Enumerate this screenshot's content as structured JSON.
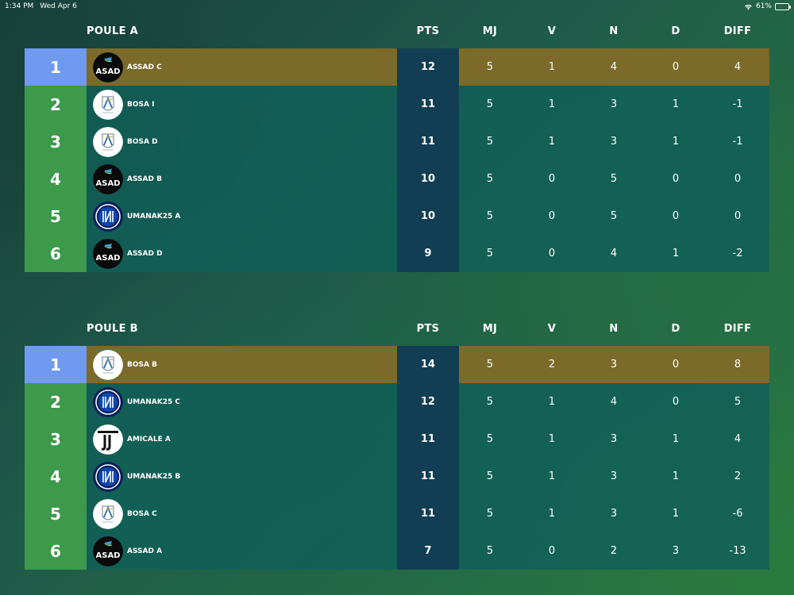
{
  "status_bar": {
    "time": "1:34 PM",
    "date": "Wed Apr 6",
    "battery": "61%",
    "battery_level": 0.61
  },
  "columns": [
    "PTS",
    "MJ",
    "V",
    "N",
    "D",
    "DIFF"
  ],
  "colors": {
    "rank_first": "#6f9af0",
    "rank": "#3d9a4a",
    "highlight": "#7b6a2a",
    "pts_column": "#123e54"
  },
  "groups": [
    {
      "title": "POULE A",
      "rows": [
        {
          "rank": "1",
          "team": "ASSAD C",
          "logo": "assad-logo",
          "pts": "12",
          "mj": "5",
          "v": "1",
          "n": "4",
          "d": "0",
          "diff": "4"
        },
        {
          "rank": "2",
          "team": "BOSA I",
          "logo": "bosa-logo",
          "pts": "11",
          "mj": "5",
          "v": "1",
          "n": "3",
          "d": "1",
          "diff": "-1"
        },
        {
          "rank": "3",
          "team": "BOSA D",
          "logo": "bosa-logo",
          "pts": "11",
          "mj": "5",
          "v": "1",
          "n": "3",
          "d": "1",
          "diff": "-1"
        },
        {
          "rank": "4",
          "team": "ASSAD B",
          "logo": "assad-logo",
          "pts": "10",
          "mj": "5",
          "v": "0",
          "n": "5",
          "d": "0",
          "diff": "0"
        },
        {
          "rank": "5",
          "team": "UMANAK25 A",
          "logo": "umanak-logo",
          "pts": "10",
          "mj": "5",
          "v": "0",
          "n": "5",
          "d": "0",
          "diff": "0"
        },
        {
          "rank": "6",
          "team": "ASSAD D",
          "logo": "assad-logo",
          "pts": "9",
          "mj": "5",
          "v": "0",
          "n": "4",
          "d": "1",
          "diff": "-2"
        }
      ]
    },
    {
      "title": "POULE B",
      "rows": [
        {
          "rank": "1",
          "team": "BOSA B",
          "logo": "bosa-logo",
          "pts": "14",
          "mj": "5",
          "v": "2",
          "n": "3",
          "d": "0",
          "diff": "8"
        },
        {
          "rank": "2",
          "team": "UMANAK25 C",
          "logo": "umanak-logo",
          "pts": "12",
          "mj": "5",
          "v": "1",
          "n": "4",
          "d": "0",
          "diff": "5"
        },
        {
          "rank": "3",
          "team": "AMICALE A",
          "logo": "juventus-logo",
          "pts": "11",
          "mj": "5",
          "v": "1",
          "n": "3",
          "d": "1",
          "diff": "4"
        },
        {
          "rank": "4",
          "team": "UMANAK25 B",
          "logo": "umanak-logo",
          "pts": "11",
          "mj": "5",
          "v": "1",
          "n": "3",
          "d": "1",
          "diff": "2"
        },
        {
          "rank": "5",
          "team": "BOSA C",
          "logo": "bosa-logo",
          "pts": "11",
          "mj": "5",
          "v": "1",
          "n": "3",
          "d": "1",
          "diff": "-6"
        },
        {
          "rank": "6",
          "team": "ASSAD A",
          "logo": "assad-logo",
          "pts": "7",
          "mj": "5",
          "v": "0",
          "n": "2",
          "d": "3",
          "diff": "-13"
        }
      ]
    }
  ]
}
